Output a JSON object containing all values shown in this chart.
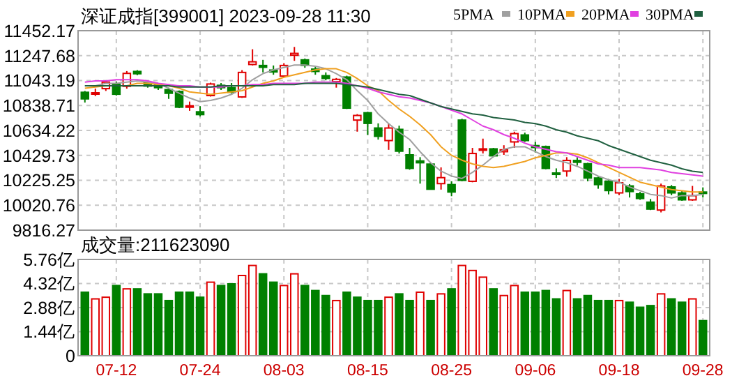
{
  "chart_data": [
    {
      "type": "candlestick",
      "title": "深证成指[399001] 2023-09-28 11:30",
      "categories": [
        null,
        null,
        null,
        null,
        null,
        null,
        null,
        null,
        null,
        null,
        null,
        null,
        null,
        null,
        null,
        null,
        null,
        null,
        null,
        null,
        null,
        null,
        null,
        null,
        null,
        null,
        null,
        null,
        null,
        null,
        null,
        null,
        null,
        null,
        null,
        null,
        null,
        null,
        null,
        null,
        null,
        null,
        null,
        null,
        null,
        null,
        null,
        null,
        null,
        null,
        null,
        null,
        null,
        null,
        null,
        null,
        null,
        null,
        null,
        null
      ],
      "ohlc": [
        [
          10947,
          10958,
          10863,
          10893
        ],
        [
          10935,
          10977,
          10916,
          10943
        ],
        [
          10977,
          11045,
          10958,
          11030
        ],
        [
          11015,
          11034,
          10920,
          10931
        ],
        [
          10996,
          11121,
          10977,
          11102
        ],
        [
          11118,
          11129,
          11087,
          11099
        ],
        [
          11026,
          11038,
          10985,
          10998
        ],
        [
          11011,
          11023,
          10966,
          10985
        ],
        [
          10969,
          10985,
          10893,
          10939
        ],
        [
          10954,
          10962,
          10817,
          10825
        ],
        [
          10825,
          10871,
          10795,
          10836
        ],
        [
          10787,
          10833,
          10749,
          10764
        ],
        [
          10920,
          11026,
          10912,
          11015
        ],
        [
          11004,
          11023,
          10966,
          10985
        ],
        [
          10985,
          11023,
          10939,
          10947
        ],
        [
          10909,
          11129,
          10901,
          11110
        ],
        [
          11175,
          11300,
          11167,
          11197
        ],
        [
          11167,
          11213,
          11110,
          11152
        ],
        [
          11129,
          11167,
          11091,
          11114
        ],
        [
          11080,
          11186,
          11072,
          11167
        ],
        [
          11251,
          11319,
          11205,
          11266
        ],
        [
          11213,
          11224,
          11148,
          11167
        ],
        [
          11137,
          11156,
          11091,
          11118
        ],
        [
          11083,
          11110,
          11045,
          11061
        ],
        [
          11034,
          11064,
          10985,
          11053
        ],
        [
          11072,
          11083,
          10810,
          10817
        ],
        [
          10719,
          10768,
          10624,
          10757
        ],
        [
          10779,
          10787,
          10597,
          10692
        ],
        [
          10654,
          10692,
          10559,
          10586
        ],
        [
          10551,
          10692,
          10475,
          10654
        ],
        [
          10643,
          10673,
          10445,
          10464
        ],
        [
          10434,
          10491,
          10312,
          10323
        ],
        [
          10384,
          10415,
          10198,
          10369
        ],
        [
          10358,
          10369,
          10149,
          10152
        ],
        [
          10198,
          10331,
          10149,
          10247
        ],
        [
          10190,
          10217,
          10095,
          10129
        ],
        [
          10719,
          10730,
          10217,
          10225
        ],
        [
          10217,
          10491,
          10209,
          10445
        ],
        [
          10472,
          10567,
          10445,
          10483
        ],
        [
          10483,
          10491,
          10415,
          10426
        ],
        [
          10460,
          10513,
          10434,
          10475
        ],
        [
          10540,
          10624,
          10491,
          10608
        ],
        [
          10597,
          10616,
          10540,
          10551
        ],
        [
          10510,
          10540,
          10453,
          10494
        ],
        [
          10502,
          10510,
          10316,
          10323
        ],
        [
          10285,
          10323,
          10244,
          10274
        ],
        [
          10301,
          10415,
          10255,
          10388
        ],
        [
          10388,
          10415,
          10346,
          10373
        ],
        [
          10361,
          10369,
          10217,
          10244
        ],
        [
          10244,
          10255,
          10156,
          10190
        ],
        [
          10217,
          10236,
          10110,
          10141
        ],
        [
          10122,
          10236,
          10103,
          10205
        ],
        [
          10179,
          10194,
          10084,
          10133
        ],
        [
          10114,
          10130,
          10065,
          10076
        ],
        [
          10046,
          10072,
          9981,
          9989
        ],
        [
          9981,
          10198,
          9962,
          10179
        ],
        [
          10171,
          10186,
          10103,
          10122
        ],
        [
          10122,
          10141,
          10057,
          10065
        ],
        [
          10065,
          10179,
          10057,
          10099
        ],
        [
          10129,
          10167,
          10084,
          10118
        ]
      ],
      "colors": [
        "#008000",
        "#e00000",
        "#e00000",
        "#008000",
        "#e00000",
        "#008000",
        "#008000",
        "#008000",
        "#008000",
        "#008000",
        "#e00000",
        "#008000",
        "#e00000",
        "#008000",
        "#008000",
        "#e00000",
        "#e00000",
        "#008000",
        "#008000",
        "#e00000",
        "#e00000",
        "#008000",
        "#008000",
        "#008000",
        "#e00000",
        "#008000",
        "#e00000",
        "#008000",
        "#008000",
        "#e00000",
        "#008000",
        "#008000",
        "#008000",
        "#008000",
        "#e00000",
        "#008000",
        "#008000",
        "#e00000",
        "#e00000",
        "#008000",
        "#e00000",
        "#e00000",
        "#008000",
        "#008000",
        "#008000",
        "#008000",
        "#e00000",
        "#008000",
        "#008000",
        "#008000",
        "#008000",
        "#e00000",
        "#008000",
        "#008000",
        "#008000",
        "#e00000",
        "#008000",
        "#008000",
        "#e00000",
        "#008000"
      ],
      "series": [
        {
          "name": "5PMA",
          "type": "line",
          "color": "#a0a0a0",
          "values": [
            11000,
            11000,
            11020,
            11020,
            11030,
            11040,
            11030,
            11020,
            10980,
            10940,
            10900,
            10870,
            10880,
            10900,
            10930,
            10980,
            11050,
            11100,
            11130,
            11150,
            11170,
            11170,
            11160,
            11140,
            11100,
            11050,
            10960,
            10880,
            10770,
            10690,
            10620,
            10560,
            10460,
            10370,
            10300,
            10260,
            10240,
            10290,
            10350,
            10420,
            10480,
            10500,
            10500,
            10460,
            10420,
            10390,
            10370,
            10340,
            10300,
            10260,
            10230,
            10210,
            10170,
            10140,
            10110,
            10100,
            10080,
            10100,
            10100,
            10110
          ]
        },
        {
          "name": "10PMA",
          "type": "line",
          "color": "#f0a020",
          "values": [
            10980,
            10990,
            11000,
            11000,
            11000,
            11020,
            11020,
            11010,
            11000,
            10980,
            10950,
            10940,
            10930,
            10940,
            10950,
            10960,
            10990,
            11020,
            11040,
            11070,
            11090,
            11110,
            11130,
            11140,
            11140,
            11110,
            11060,
            11000,
            10960,
            10880,
            10810,
            10750,
            10680,
            10600,
            10500,
            10430,
            10390,
            10360,
            10340,
            10330,
            10340,
            10360,
            10380,
            10410,
            10430,
            10450,
            10450,
            10440,
            10410,
            10370,
            10330,
            10290,
            10250,
            10210,
            10190,
            10170,
            10150,
            10140,
            10130,
            10130
          ]
        },
        {
          "name": "20PMA",
          "type": "line",
          "color": "#e040e0",
          "values": [
            11030,
            11040,
            11040,
            11050,
            11050,
            11050,
            11040,
            11020,
            11010,
            11000,
            11000,
            10990,
            10990,
            10990,
            11000,
            11000,
            11010,
            11010,
            11020,
            11020,
            11020,
            11020,
            11030,
            11030,
            11030,
            11020,
            11000,
            10980,
            10950,
            10930,
            10910,
            10900,
            10880,
            10860,
            10830,
            10800,
            10770,
            10720,
            10670,
            10640,
            10600,
            10570,
            10530,
            10500,
            10480,
            10460,
            10450,
            10420,
            10390,
            10360,
            10350,
            10330,
            10330,
            10330,
            10320,
            10310,
            10290,
            10280,
            10270,
            10260
          ]
        },
        {
          "name": "30PMA",
          "type": "line",
          "color": "#206040",
          "values": [
            11000,
            11000,
            11000,
            11000,
            11000,
            11000,
            11000,
            11000,
            11000,
            10990,
            10990,
            10990,
            10990,
            11000,
            11000,
            11000,
            11000,
            11000,
            11010,
            11010,
            11010,
            11020,
            11020,
            11020,
            11020,
            11010,
            11000,
            10990,
            10970,
            10950,
            10930,
            10920,
            10890,
            10860,
            10830,
            10810,
            10790,
            10770,
            10760,
            10740,
            10730,
            10720,
            10700,
            10690,
            10670,
            10640,
            10620,
            10590,
            10570,
            10550,
            10510,
            10480,
            10450,
            10420,
            10390,
            10370,
            10350,
            10320,
            10300,
            10290
          ]
        }
      ],
      "ylim": [
        9816.27,
        11452.17
      ],
      "yticks": [
        11452.17,
        11247.68,
        11043.19,
        10838.71,
        10634.22,
        10429.73,
        10225.25,
        10020.76,
        9816.27
      ],
      "grid": true,
      "legend": "top right",
      "tick_labels": "y"
    },
    {
      "type": "bar",
      "title": "成交量:211623090",
      "categories": [
        null,
        null,
        null,
        "07-12",
        null,
        null,
        null,
        null,
        null,
        null,
        null,
        "07-24",
        null,
        null,
        null,
        null,
        null,
        null,
        null,
        "08-03",
        null,
        null,
        null,
        null,
        null,
        null,
        null,
        "08-15",
        null,
        null,
        null,
        null,
        null,
        null,
        null,
        "08-25",
        null,
        null,
        null,
        null,
        null,
        null,
        null,
        "09-06",
        null,
        null,
        null,
        null,
        null,
        null,
        null,
        "09-18",
        null,
        null,
        null,
        null,
        null,
        null,
        null,
        "09-28"
      ],
      "values": [
        3.8,
        3.4,
        3.5,
        4.2,
        4.0,
        4.0,
        3.7,
        3.7,
        3.3,
        3.8,
        3.8,
        3.5,
        4.4,
        4.2,
        4.3,
        4.8,
        5.4,
        4.9,
        4.4,
        4.2,
        4.9,
        4.2,
        3.9,
        3.6,
        3.3,
        3.8,
        3.5,
        3.3,
        3.3,
        3.5,
        3.7,
        3.3,
        3.8,
        3.3,
        3.7,
        4.0,
        5.4,
        5.1,
        4.7,
        4.0,
        3.6,
        4.2,
        3.8,
        3.8,
        3.9,
        3.4,
        3.9,
        3.4,
        3.6,
        3.3,
        3.3,
        3.3,
        3.2,
        2.9,
        3.0,
        3.7,
        3.4,
        3.2,
        3.4,
        2.1
      ],
      "colors": [
        "#008000",
        "#e00000",
        "#e00000",
        "#008000",
        "#e00000",
        "#008000",
        "#008000",
        "#008000",
        "#008000",
        "#008000",
        "#008000",
        "#008000",
        "#e00000",
        "#008000",
        "#008000",
        "#e00000",
        "#e00000",
        "#008000",
        "#008000",
        "#e00000",
        "#e00000",
        "#008000",
        "#008000",
        "#008000",
        "#e00000",
        "#008000",
        "#008000",
        "#008000",
        "#008000",
        "#e00000",
        "#008000",
        "#008000",
        "#e00000",
        "#008000",
        "#e00000",
        "#008000",
        "#e00000",
        "#e00000",
        "#e00000",
        "#008000",
        "#e00000",
        "#e00000",
        "#008000",
        "#008000",
        "#008000",
        "#008000",
        "#e00000",
        "#008000",
        "#008000",
        "#008000",
        "#008000",
        "#e00000",
        "#008000",
        "#008000",
        "#008000",
        "#e00000",
        "#008000",
        "#008000",
        "#e00000",
        "#008000"
      ],
      "ylim": [
        0,
        5.76
      ],
      "yticks": [
        {
          "value": 5.76,
          "label": "5.76亿"
        },
        {
          "value": 4.32,
          "label": "4.32亿"
        },
        {
          "value": 2.88,
          "label": "2.88亿"
        },
        {
          "value": 1.44,
          "label": "1.44亿"
        },
        0
      ],
      "grid": true
    }
  ]
}
